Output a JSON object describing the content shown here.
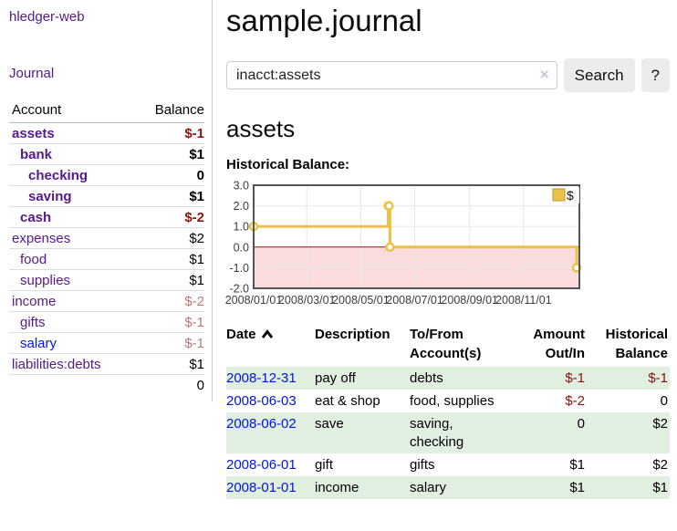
{
  "sidebar": {
    "app_title": "hledger-web",
    "journal_link": "Journal",
    "accounts": {
      "header": {
        "account": "Account",
        "balance": "Balance"
      },
      "rows": [
        {
          "name": "assets",
          "depth": 1,
          "bold": true,
          "link": "visited",
          "balance": "$-1",
          "balance_style": "neg-strong"
        },
        {
          "name": "bank",
          "depth": 2,
          "bold": true,
          "link": "visited",
          "balance": "$1",
          "balance_style": ""
        },
        {
          "name": "checking",
          "depth": 3,
          "bold": true,
          "link": "visited",
          "balance": "0",
          "balance_style": ""
        },
        {
          "name": "saving",
          "depth": 3,
          "bold": true,
          "link": "visited",
          "balance": "$1",
          "balance_style": ""
        },
        {
          "name": "cash",
          "depth": 2,
          "bold": true,
          "link": "visited",
          "balance": "$-2",
          "balance_style": "neg-strong"
        },
        {
          "name": "expenses",
          "depth": 1,
          "bold": false,
          "link": "visited",
          "balance": "$2",
          "balance_style": ""
        },
        {
          "name": "food",
          "depth": 2,
          "bold": false,
          "link": "visited",
          "balance": "$1",
          "balance_style": ""
        },
        {
          "name": "supplies",
          "depth": 2,
          "bold": false,
          "link": "visited",
          "balance": "$1",
          "balance_style": ""
        },
        {
          "name": "income",
          "depth": 1,
          "bold": false,
          "link": "visited",
          "balance": "$-2",
          "balance_style": "neg-soft"
        },
        {
          "name": "gifts",
          "depth": 2,
          "bold": false,
          "link": "visited",
          "balance": "$-1",
          "balance_style": "neg-soft"
        },
        {
          "name": "salary",
          "depth": 2,
          "bold": false,
          "link": "unvisited",
          "balance": "$-1",
          "balance_style": "neg-soft"
        },
        {
          "name": "liabilities:debts",
          "depth": 1,
          "bold": false,
          "link": "visited",
          "balance": "$1",
          "balance_style": ""
        }
      ],
      "total": "0"
    }
  },
  "main": {
    "title": "sample.journal",
    "search": {
      "value": "inacct:assets",
      "clear_icon": "×",
      "button_label": "Search",
      "help_label": "?"
    },
    "account_heading": "assets"
  },
  "chart_data": {
    "type": "line",
    "title": "Historical Balance:",
    "x_type": "date",
    "series": [
      {
        "name": "$",
        "color": "#e9c247",
        "step": true,
        "markers": true,
        "points": [
          [
            "2008-01-01",
            1
          ],
          [
            "2008-06-01",
            2
          ],
          [
            "2008-06-02",
            2
          ],
          [
            "2008-06-03",
            0
          ],
          [
            "2008-12-31",
            -1
          ]
        ]
      }
    ],
    "ylim": [
      -2.0,
      3.0
    ],
    "yticks": [
      3.0,
      2.0,
      1.0,
      0.0,
      -1.0,
      -2.0
    ],
    "ytick_labels": [
      "3.0",
      "2.0",
      "1.0",
      "0.0",
      "-1.0",
      "-2.0"
    ],
    "xtick_labels": [
      "2008/01/01",
      "2008/03/01",
      "2008/05/01",
      "2008/07/01",
      "2008/09/01",
      "2008/11/01"
    ],
    "grid": true,
    "legend_position": "top-right",
    "negative_region_fill": "#fbdcdc",
    "zero_line_color": "#8c1717",
    "border_color": "#545454"
  },
  "register": {
    "columns": [
      {
        "line1": "Date",
        "line2": "",
        "align": "left",
        "sort": "ascending"
      },
      {
        "line1": "Description",
        "line2": "",
        "align": "left"
      },
      {
        "line1": "To/From",
        "line2": "Account(s)",
        "align": "left"
      },
      {
        "line1": "Amount",
        "line2": "Out/In",
        "align": "right"
      },
      {
        "line1": "Historical",
        "line2": "Balance",
        "align": "right"
      }
    ],
    "rows": [
      {
        "date": "2008-12-31",
        "description": "pay off",
        "accounts_lines": [
          "debts"
        ],
        "amount": "$-1",
        "balance": "$-1"
      },
      {
        "date": "2008-06-03",
        "description": "eat & shop",
        "accounts_lines": [
          "food, supplies"
        ],
        "amount": "$-2",
        "balance": "0"
      },
      {
        "date": "2008-06-02",
        "description": "save",
        "accounts_lines": [
          "saving,",
          "checking"
        ],
        "amount": "0",
        "balance": "$2"
      },
      {
        "date": "2008-06-01",
        "description": "gift",
        "accounts_lines": [
          "gifts"
        ],
        "amount": "$1",
        "balance": "$2"
      },
      {
        "date": "2008-01-01",
        "description": "income",
        "accounts_lines": [
          "salary"
        ],
        "amount": "$1",
        "balance": "$1"
      }
    ]
  }
}
